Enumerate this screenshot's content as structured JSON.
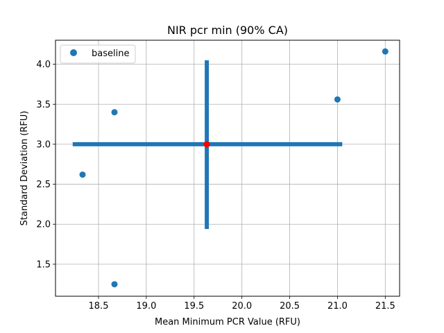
{
  "chart_data": {
    "type": "scatter",
    "title": "NIR pcr min (90% CA)",
    "xlabel": "Mean Minimum PCR Value (RFU)",
    "ylabel": "Standard Deviation (RFU)",
    "xlim": [
      18.05,
      21.65
    ],
    "ylim": [
      1.1,
      4.3
    ],
    "xticks": [
      18.5,
      19.0,
      19.5,
      20.0,
      20.5,
      21.0,
      21.5
    ],
    "xtick_labels": [
      "18.5",
      "19.0",
      "19.5",
      "20.0",
      "20.5",
      "21.0",
      "21.5"
    ],
    "yticks": [
      1.5,
      2.0,
      2.5,
      3.0,
      3.5,
      4.0
    ],
    "ytick_labels": [
      "1.5",
      "2.0",
      "2.5",
      "3.0",
      "3.5",
      "4.0"
    ],
    "grid": true,
    "legend_placement": "upper-left",
    "series": [
      {
        "name": "baseline",
        "color": "#1f77b4",
        "x": [
          18.333,
          18.667,
          18.667,
          21.0,
          21.5
        ],
        "y": [
          2.62,
          3.4,
          1.25,
          3.56,
          4.16
        ]
      }
    ],
    "mean_point": {
      "x": 19.633,
      "y": 3.0,
      "color": "#ff0000"
    },
    "error_cross": {
      "color": "#1f77b4",
      "x_range": [
        18.23,
        21.05
      ],
      "y_range": [
        1.94,
        4.05
      ]
    }
  }
}
